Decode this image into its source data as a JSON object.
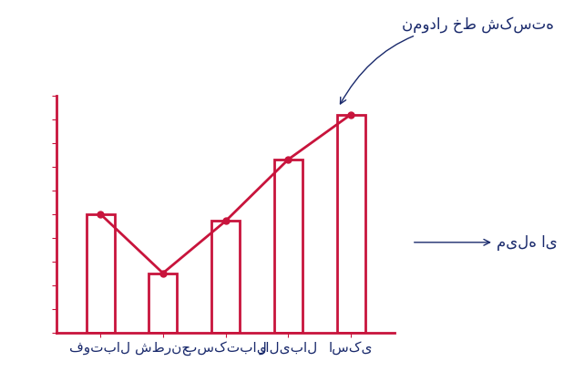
{
  "chart_data": {
    "type": "bar",
    "categories": [
      "فوتبال",
      "شطرنج",
      "بسکتبال",
      "والیبال",
      "اسکی"
    ],
    "values": [
      5,
      2.5,
      4.7,
      7.3,
      9.2
    ],
    "color": "#c8143c",
    "marker": "o",
    "line_style": "solid",
    "ylim": [
      0,
      10
    ],
    "yticks": [
      0,
      1,
      2,
      3,
      4,
      5,
      6,
      7,
      8,
      9,
      10
    ],
    "tick_labels": "x",
    "grid": false,
    "annotations": [
      "نمودار خط شکسته",
      "میله ای"
    ]
  }
}
